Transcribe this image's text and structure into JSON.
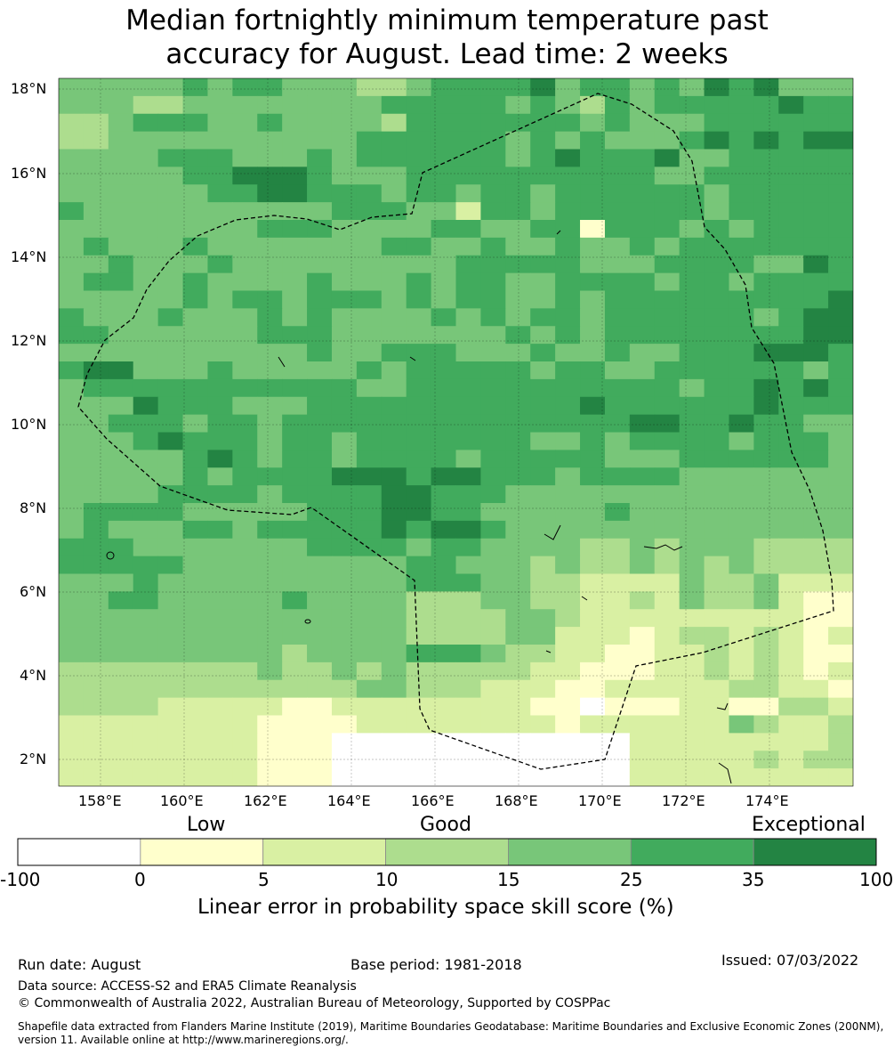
{
  "title_line1": "Median fortnightly minimum temperature past",
  "title_line2": "accuracy for August. Lead time: 2 weeks",
  "lat_labels": [
    "18°N",
    "16°N",
    "14°N",
    "12°N",
    "10°N",
    "8°N",
    "6°N",
    "4°N",
    "2°N"
  ],
  "lon_labels": [
    "158°E",
    "160°E",
    "162°E",
    "164°E",
    "166°E",
    "168°E",
    "170°E",
    "172°E",
    "174°E"
  ],
  "colorbar": {
    "categories": [
      "Low",
      "Good",
      "Exceptional"
    ],
    "ticks": [
      "-100",
      "0",
      "5",
      "10",
      "15",
      "25",
      "35",
      "100"
    ],
    "colors": [
      "#ffffff",
      "#ffffcc",
      "#d9f0a3",
      "#addd8e",
      "#78c679",
      "#41ab5d",
      "#238443"
    ],
    "label": "Linear error in probability space skill score (%)"
  },
  "footer": {
    "run_date": "Run date: August",
    "base_period": "Base period: 1981-2018",
    "issued": "Issued: 07/03/2022",
    "data_source": "Data source: ACCESS-S2 and ERA5 Climate Reanalysis",
    "copyright": "© Commonwealth of Australia 2022, Australian Bureau of Meteorology, Supported by COSPPac",
    "shapefile_line1": "Shapefile data extracted from Flanders Marine Institute (2019), Maritime Boundaries Geodatabase: Maritime Boundaries and Exclusive Economic Zones (200NM),",
    "shapefile_line2": "version 11. Available online at http://www.marineregions.org/."
  },
  "grid_cells": [
    "44444545544433455556455454656444",
    "44433444444445555545435455555655",
    "33455544544443555555545444555555",
    "33444444444455555545454445656566",
    "44445554445455555545655564455555",
    "44444556665444555555555544555555",
    "44444455665554554554555555455555",
    "54444444444555442554555555455555",
    "44444444555444455445515554545555",
    "45444544444445544544544545555555",
    "44544454444444445555544455554465",
    "45544544445444545544555545545555",
    "44444545545554545544545555555556",
    "54445444545444454545545555554566",
    "55444444555444444454545555555566",
    "44444444445445554445445445556665",
    "56644454444454555554554455555545",
    "45555555555544555555555554556565",
    "44465554445555555555565555556555",
    "44555455455555555555555665565544",
    "44456555455455555554454555545554",
    "44444565455455554555554445555554",
    "44444545555666566555455554444444",
    "44445555455556655544444444444444",
    "45555444445556655444445444444444",
    "45444554555556566544444444444444",
    "55544444445555455444433434443333",
    "55555444444444554443433434343333",
    "44454444444444555443322224334222",
    "44554444454444333443322324334211",
    "44444444444444333344322222222211",
    "44444444444444333344222123323212",
    "44444444434444555433221122323211",
    "33333333433434333332211122323212",
    "33333333333344333222112222233221",
    "33332222211222222221101112211332",
    "22222222111122222222122222243223",
    "22222222111000000000000222222223",
    "22222222111000000000000222223233",
    "22222222111000000000000222222222"
  ]
}
